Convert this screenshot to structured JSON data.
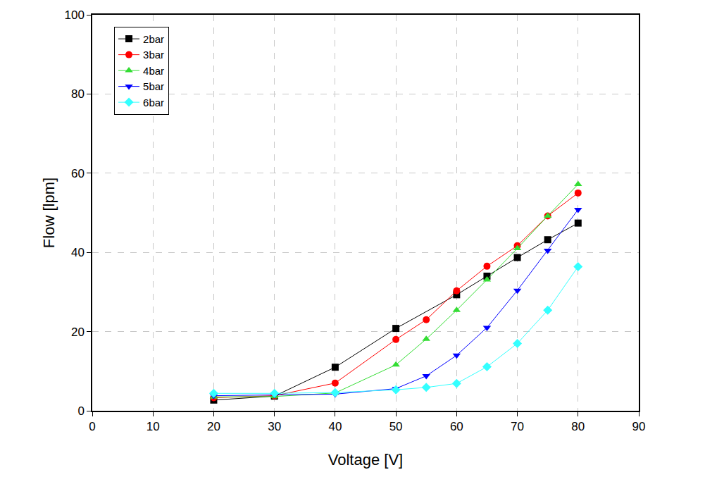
{
  "chart_data": {
    "type": "line",
    "x_label": "Voltage [V]",
    "y_label": "Flow [lpm]",
    "x": [
      20,
      30,
      40,
      50,
      55,
      60,
      65,
      70,
      75,
      80
    ],
    "series": [
      {
        "name": "2bar",
        "color": "#000000",
        "marker": "square",
        "x": [
          20,
          30,
          40,
          50,
          60,
          65,
          70,
          75,
          80
        ],
        "values": [
          2.7,
          3.7,
          11,
          20.8,
          29.3,
          34,
          38.7,
          43.2,
          47.4
        ]
      },
      {
        "name": "3bar",
        "color": "#ff0000",
        "marker": "circle",
        "values": [
          3.3,
          3.8,
          7,
          18,
          23,
          30.3,
          36.5,
          41.7,
          49.2,
          55
        ]
      },
      {
        "name": "4bar",
        "color": "#33dd33",
        "marker": "triangle-up",
        "values": [
          3.5,
          3.6,
          4.5,
          11.6,
          18.1,
          25.4,
          33.1,
          41,
          49.2,
          57.2
        ]
      },
      {
        "name": "5bar",
        "color": "#0000ff",
        "marker": "triangle-down",
        "values": [
          3.8,
          4,
          4.2,
          5.6,
          8.8,
          14,
          21,
          30.4,
          40.5,
          50.8
        ]
      },
      {
        "name": "6bar",
        "color": "#33ffff",
        "marker": "diamond",
        "values": [
          4.4,
          4.4,
          4.6,
          5.3,
          5.9,
          6.9,
          11.1,
          17,
          25.4,
          36.4
        ]
      }
    ],
    "xlim": [
      0,
      90
    ],
    "xticks": [
      0,
      10,
      20,
      30,
      40,
      50,
      60,
      70,
      80,
      90
    ],
    "ylim": [
      0,
      100
    ],
    "yticks": [
      0,
      20,
      40,
      60,
      80,
      100
    ],
    "grid": true,
    "legend": "top left"
  }
}
